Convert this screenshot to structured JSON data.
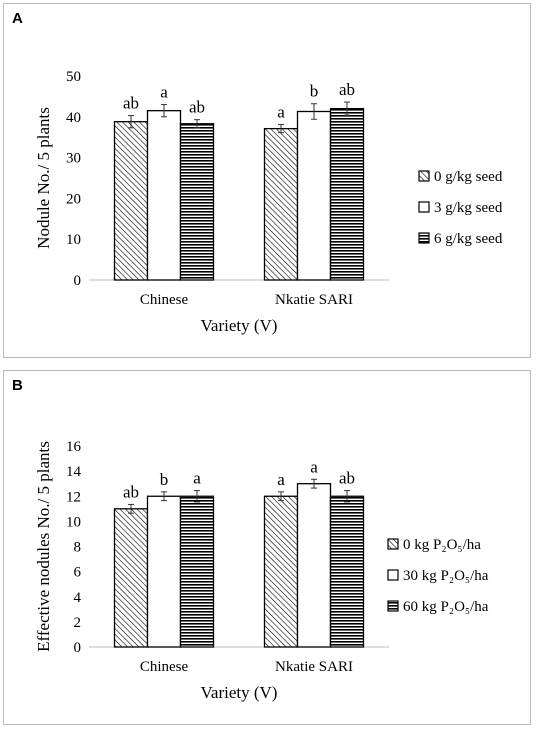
{
  "chart_data": [
    {
      "panel_letter": "A",
      "type": "bar",
      "xlabel": "Variety (V)",
      "ylabel": "Nodule No./ 5 plants",
      "ylim": [
        0,
        50
      ],
      "yticks": [
        "0",
        "10",
        "20",
        "30",
        "40",
        "50"
      ],
      "categories": [
        "Chinese",
        "Nkatie SARI"
      ],
      "series": [
        {
          "name": "0 g/kg seed",
          "pattern": "diagonal",
          "values": [
            38.8,
            37.1
          ],
          "errors": [
            1.5,
            1.0
          ],
          "letters": [
            "ab",
            "a"
          ]
        },
        {
          "name": "3 g/kg seed",
          "pattern": "white",
          "values": [
            41.5,
            41.3
          ],
          "errors": [
            1.5,
            1.9
          ],
          "letters": [
            "a",
            "b"
          ]
        },
        {
          "name": "6 g/kg seed",
          "pattern": "horizontal",
          "values": [
            38.3,
            42.0
          ],
          "errors": [
            1.0,
            1.6
          ],
          "letters": [
            "ab",
            "ab"
          ]
        }
      ],
      "grid": false,
      "legend_position": "right"
    },
    {
      "panel_letter": "B",
      "type": "bar",
      "xlabel": "Variety (V)",
      "ylabel": "Effective nodules No./ 5 plants",
      "ylim": [
        0,
        16
      ],
      "yticks": [
        "0",
        "2",
        "4",
        "6",
        "8",
        "10",
        "12",
        "14",
        "16"
      ],
      "categories": [
        "Chinese",
        "Nkatie SARI"
      ],
      "series": [
        {
          "name": "0 kg P₂O₅/ha",
          "pattern": "diagonal",
          "values": [
            11.0,
            12.0
          ],
          "errors": [
            0.35,
            0.35
          ],
          "letters": [
            "ab",
            "a"
          ]
        },
        {
          "name": "30 kg P₂O₅/ha",
          "pattern": "white",
          "values": [
            12.0,
            13.0
          ],
          "errors": [
            0.35,
            0.35
          ],
          "letters": [
            "b",
            "a"
          ]
        },
        {
          "name": "60 kg P₂O₅/ha",
          "pattern": "horizontal",
          "values": [
            12.0,
            12.0
          ],
          "errors": [
            0.45,
            0.45
          ],
          "letters": [
            "a",
            "ab"
          ]
        }
      ],
      "grid": false,
      "legend_position": "right"
    }
  ]
}
